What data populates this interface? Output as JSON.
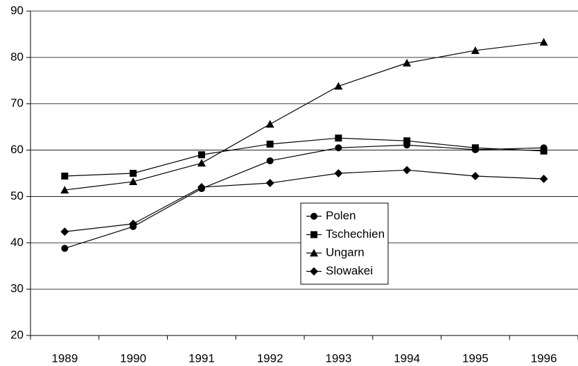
{
  "chart_data": {
    "type": "line",
    "categories": [
      "1989",
      "1990",
      "1991",
      "1992",
      "1993",
      "1994",
      "1995",
      "1996"
    ],
    "series": [
      {
        "name": "Polen",
        "color": "#000000",
        "marker": "circle",
        "values": [
          38.8,
          43.5,
          51.7,
          57.7,
          60.5,
          61.1,
          60.1,
          60.5
        ]
      },
      {
        "name": "Tschechien",
        "color": "#000000",
        "marker": "square",
        "values": [
          54.4,
          55.0,
          59.0,
          61.3,
          62.6,
          62.0,
          60.5,
          59.8
        ]
      },
      {
        "name": "Ungarn",
        "color": "#000000",
        "marker": "triangle",
        "values": [
          51.4,
          53.2,
          57.2,
          65.6,
          73.8,
          78.8,
          81.5,
          83.3
        ]
      },
      {
        "name": "Slowakei",
        "color": "#000000",
        "marker": "diamond",
        "values": [
          42.4,
          44.1,
          52.0,
          52.9,
          55.0,
          55.7,
          54.4,
          53.8
        ]
      }
    ],
    "ylim": [
      20,
      90
    ],
    "yticks": [
      20,
      30,
      40,
      50,
      60,
      70,
      80,
      90
    ],
    "grid": true
  }
}
